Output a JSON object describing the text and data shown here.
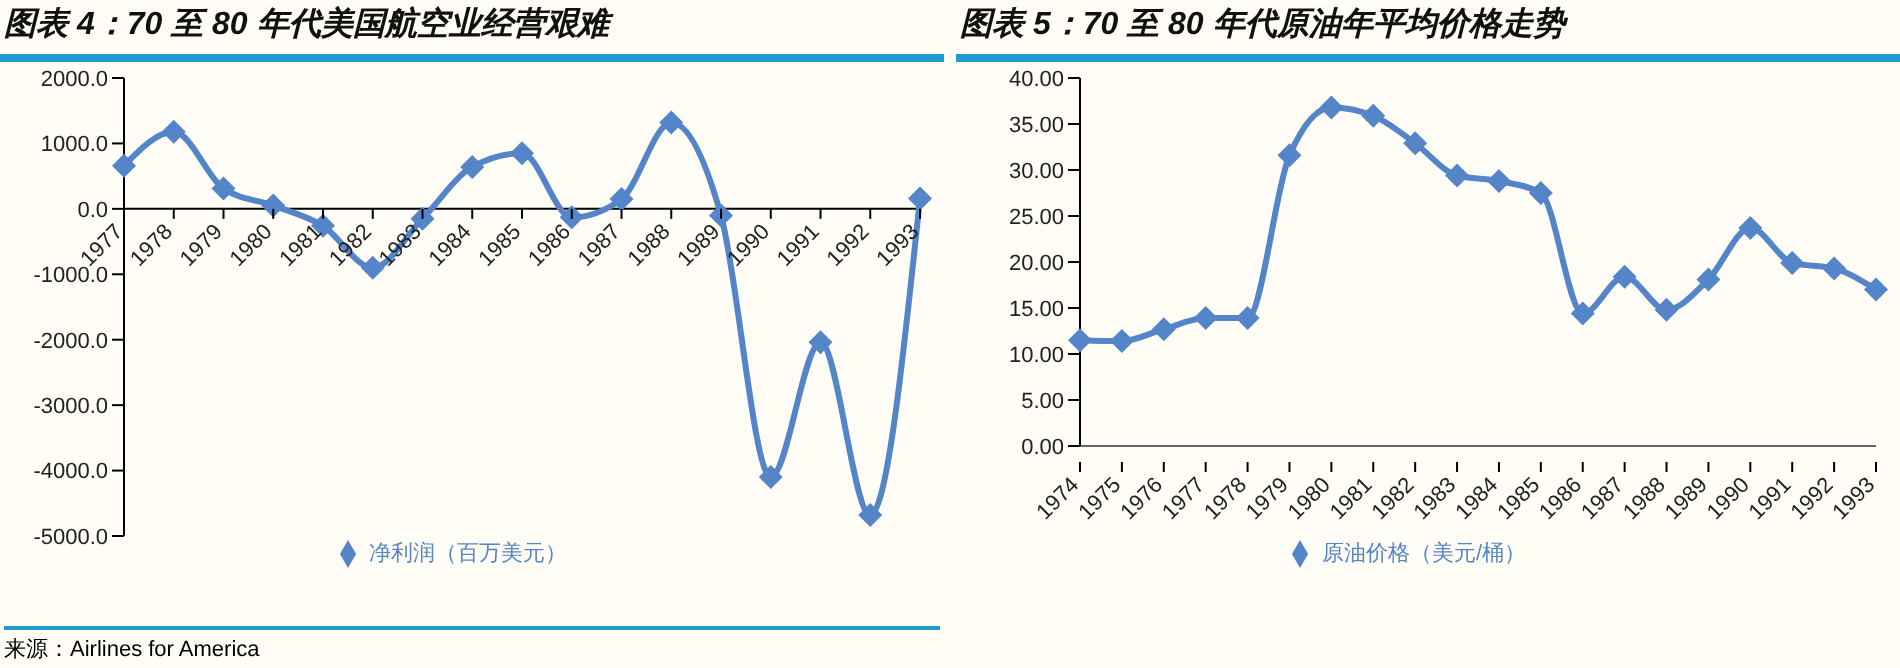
{
  "chart_data": [
    {
      "type": "line",
      "title": "图表 4：70 至 80 年代美国航空业经营艰难",
      "annotations": [
        "来源：Airlines for America"
      ],
      "categories": [
        "1977",
        "1978",
        "1979",
        "1980",
        "1981",
        "1982",
        "1983",
        "1984",
        "1985",
        "1986",
        "1987",
        "1988",
        "1989",
        "1990",
        "1991",
        "1992",
        "1993"
      ],
      "series": [
        {
          "name": "净利润（百万美元）",
          "color": "#5585c9",
          "values": [
            660,
            1180,
            310,
            50,
            -260,
            -900,
            -150,
            640,
            850,
            -130,
            150,
            1320,
            -100,
            -4100,
            -2040,
            -4680,
            160
          ]
        }
      ],
      "ylim": [
        -5000,
        2000
      ],
      "yticks": [
        {
          "value": -5000,
          "label": "-5000.0"
        },
        {
          "value": -4000,
          "label": "-4000.0"
        },
        {
          "value": -3000,
          "label": "-3000.0"
        },
        {
          "value": -2000,
          "label": "-2000.0"
        },
        {
          "value": -1000,
          "label": "-1000.0"
        },
        {
          "value": 0,
          "label": "0.0"
        },
        {
          "value": 1000,
          "label": "1000.0"
        },
        {
          "value": 2000,
          "label": "2000.0"
        }
      ],
      "legend": "bottom",
      "marker": "diamond"
    },
    {
      "type": "line",
      "title": "图表 5：70 至 80 年代原油年平均价格走势",
      "categories": [
        "1974",
        "1975",
        "1976",
        "1977",
        "1978",
        "1979",
        "1980",
        "1981",
        "1982",
        "1983",
        "1984",
        "1985",
        "1986",
        "1987",
        "1988",
        "1989",
        "1990",
        "1991",
        "1992",
        "1993"
      ],
      "series": [
        {
          "name": "原油价格（美元/桶）",
          "color": "#5585c9",
          "values": [
            11.5,
            11.4,
            12.7,
            13.9,
            13.9,
            31.6,
            36.8,
            35.9,
            32.9,
            29.4,
            28.8,
            27.5,
            14.4,
            18.4,
            14.8,
            18.1,
            23.7,
            19.9,
            19.3,
            17.0
          ]
        }
      ],
      "ylim": [
        0,
        40
      ],
      "yticks": [
        {
          "value": 0,
          "label": "0.00"
        },
        {
          "value": 5,
          "label": "5.00"
        },
        {
          "value": 10,
          "label": "10.00"
        },
        {
          "value": 15,
          "label": "15.00"
        },
        {
          "value": 20,
          "label": "20.00"
        },
        {
          "value": 25,
          "label": "25.00"
        },
        {
          "value": 30,
          "label": "30.00"
        },
        {
          "value": 35,
          "label": "35.00"
        },
        {
          "value": 40,
          "label": "40.00"
        }
      ],
      "legend": "bottom",
      "marker": "diamond"
    }
  ]
}
